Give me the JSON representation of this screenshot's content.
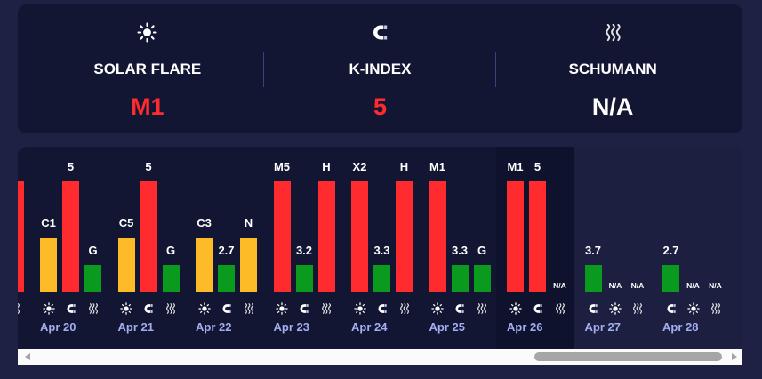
{
  "summary": [
    {
      "icon": "sun-icon",
      "label": "SOLAR FLARE",
      "value": "M1",
      "value_color": "#ff2b2f"
    },
    {
      "icon": "magnet-icon",
      "label": "K-INDEX",
      "value": "5",
      "value_color": "#ff2b2f"
    },
    {
      "icon": "wave-icon",
      "label": "SCHUMANN",
      "value": "N/A",
      "value_color": "#ffffff"
    }
  ],
  "colors": {
    "page_bg": "#1e2143",
    "card_bg": "#131633",
    "date_text": "#a3adf0",
    "level_1": "#0a9b1e",
    "level_2": "#fdbc27",
    "level_3": "#ff2b2f"
  },
  "chart_data": {
    "type": "bar",
    "days": [
      {
        "bars": [
          null,
          null,
          {
            "icon": "wave-icon",
            "label": "",
            "level": 3
          }
        ]
      },
      {
        "date": "Apr 20",
        "bars": [
          {
            "icon": "sun-icon",
            "label": "C1",
            "level": 2
          },
          {
            "icon": "magnet-icon",
            "label": "5",
            "level": 3
          },
          {
            "icon": "wave-icon",
            "label": "G",
            "level": 1
          }
        ]
      },
      {
        "date": "Apr 21",
        "bars": [
          {
            "icon": "sun-icon",
            "label": "C5",
            "level": 2
          },
          {
            "icon": "magnet-icon",
            "label": "5",
            "level": 3
          },
          {
            "icon": "wave-icon",
            "label": "G",
            "level": 1
          }
        ]
      },
      {
        "date": "Apr 22",
        "bars": [
          {
            "icon": "sun-icon",
            "label": "C3",
            "level": 2
          },
          {
            "icon": "magnet-icon",
            "label": "2.7",
            "level": 1
          },
          {
            "icon": "wave-icon",
            "label": "N",
            "level": 2
          }
        ]
      },
      {
        "date": "Apr 23",
        "bars": [
          {
            "icon": "sun-icon",
            "label": "M5",
            "level": 3
          },
          {
            "icon": "magnet-icon",
            "label": "3.2",
            "level": 1
          },
          {
            "icon": "wave-icon",
            "label": "H",
            "level": 3
          }
        ]
      },
      {
        "date": "Apr 24",
        "bars": [
          {
            "icon": "sun-icon",
            "label": "X2",
            "level": 3
          },
          {
            "icon": "magnet-icon",
            "label": "3.3",
            "level": 1
          },
          {
            "icon": "wave-icon",
            "label": "H",
            "level": 3
          }
        ]
      },
      {
        "date": "Apr 25",
        "bars": [
          {
            "icon": "sun-icon",
            "label": "M1",
            "level": 3
          },
          {
            "icon": "magnet-icon",
            "label": "3.3",
            "level": 1
          },
          {
            "icon": "wave-icon",
            "label": "G",
            "level": 1
          }
        ]
      },
      {
        "date": "Apr 26",
        "bg": "#0f122c",
        "bars": [
          {
            "icon": "sun-icon",
            "label": "M1",
            "level": 3
          },
          {
            "icon": "magnet-icon",
            "label": "5",
            "level": 3
          },
          {
            "icon": "wave-icon",
            "label": "N/A",
            "level": 0
          }
        ]
      },
      {
        "date": "Apr 27",
        "bg": "#1c1f40",
        "bars": [
          {
            "icon": "magnet-icon",
            "label": "3.7",
            "level": 1
          },
          {
            "icon": "sun-icon",
            "label": "N/A",
            "level": 0
          },
          {
            "icon": "wave-icon",
            "label": "N/A",
            "level": 0
          }
        ]
      },
      {
        "date": "Apr 28",
        "bg": "#1c1f40",
        "bars": [
          {
            "icon": "magnet-icon",
            "label": "2.7",
            "level": 1
          },
          {
            "icon": "sun-icon",
            "label": "N/A",
            "level": 0
          },
          {
            "icon": "wave-icon",
            "label": "N/A",
            "level": 0
          }
        ]
      }
    ]
  },
  "scrollbar": {
    "position": 0.99,
    "visible_ratio": 0.27
  }
}
